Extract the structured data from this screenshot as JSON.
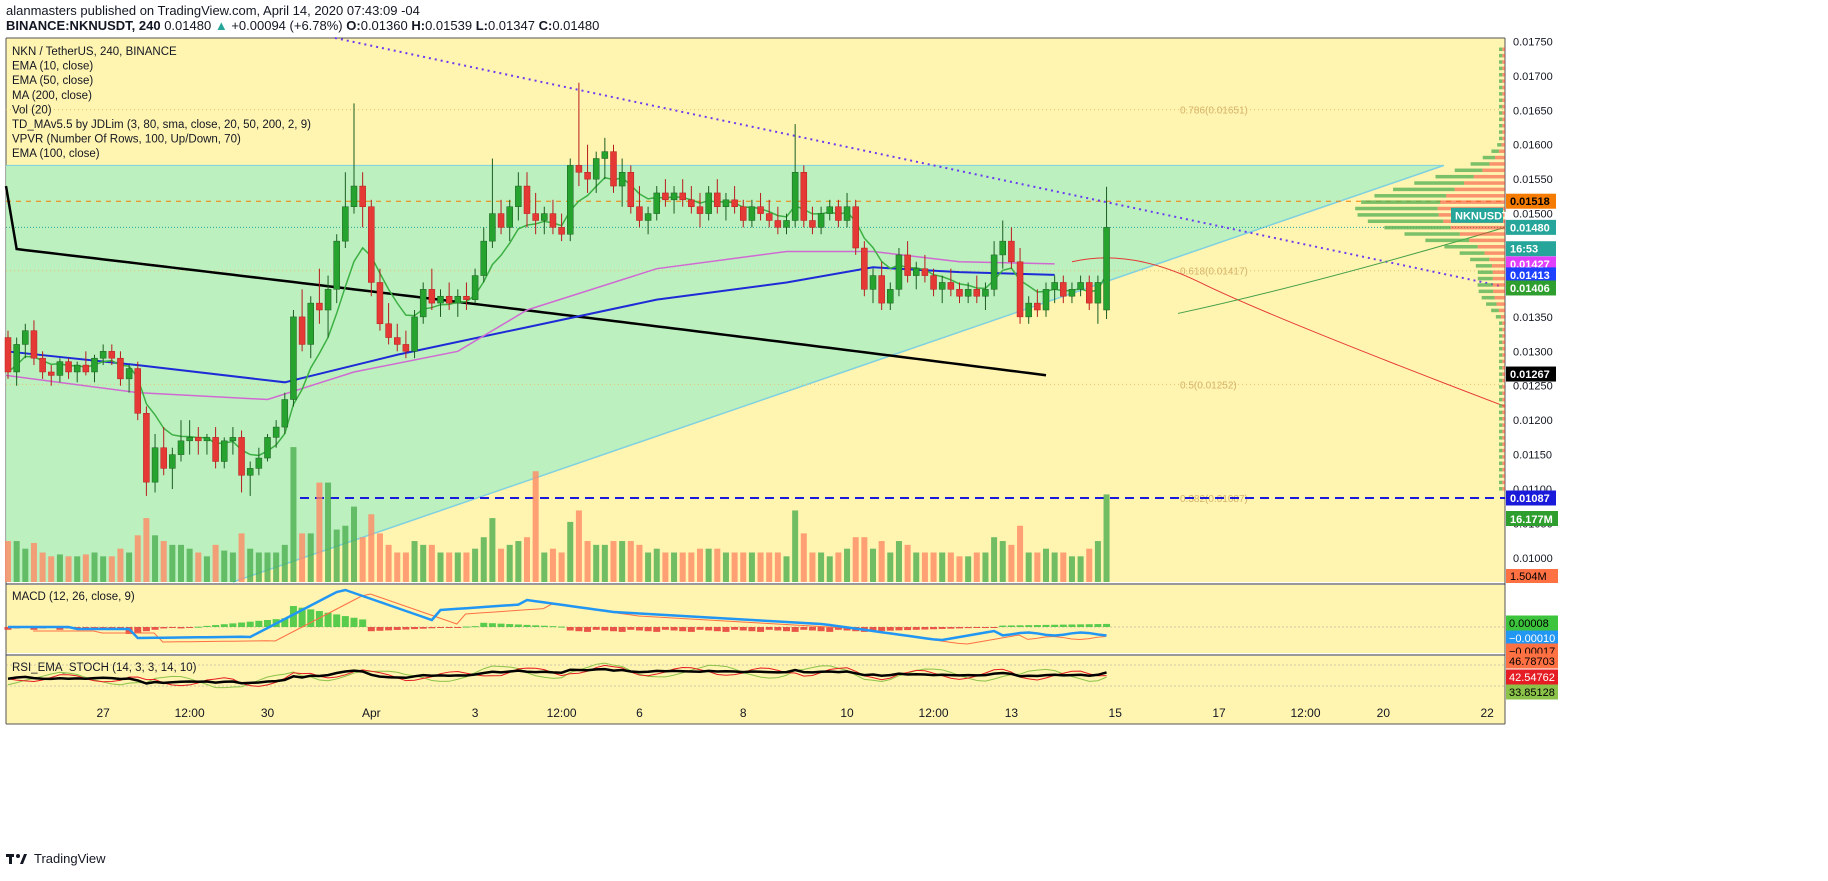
{
  "header": {
    "publisher_line": "alanmasters published on TradingView.com, April 14, 2020 07:43:09 -04",
    "symbol": "BINANCE:NKNUSDT, 240",
    "last": "0.01480",
    "change": "+0.00094 (+6.78%)",
    "o_label": "O:",
    "o": "0.01360",
    "h_label": "H:",
    "h": "0.01539",
    "l_label": "L:",
    "l": "0.01347",
    "c_label": "C:",
    "c": "0.01480"
  },
  "legend": [
    "NKN / TetherUS, 240, BINANCE",
    "EMA (10, close)",
    "EMA (50, close)",
    "MA (200, close)",
    "Vol (20)",
    "TD_MAv5.5 by JDLim (3, 80, sma, close, 20, 50, 200, 2, 9)",
    "VPVR (Number Of Rows, 100, Up/Down, 70)",
    "EMA (100, close)"
  ],
  "fib_labels": [
    "0.786(0.01651)",
    "0.618(0.01417)",
    "0.5(0.01252)",
    "0.382(0.01087)"
  ],
  "price_labels": [
    {
      "text": "0.01518",
      "price": 0.01518,
      "bg": "#f57c00",
      "fg": "#000"
    },
    {
      "text": "0.01480",
      "price": 0.0148,
      "bg": "#26a69a",
      "fg": "#fff"
    },
    {
      "text": "NKNUSDT",
      "price": 0.014975,
      "bg": "#26a69a",
      "fg": "#fff"
    },
    {
      "text": "16:53",
      "price": 0.01449,
      "bg": "#26a69a",
      "fg": "#fff"
    },
    {
      "text": "0.01427",
      "price": 0.01427,
      "bg": "#e040fb",
      "fg": "#fff"
    },
    {
      "text": "0.01413",
      "price": 0.01411,
      "bg": "#1e40ff",
      "fg": "#fff"
    },
    {
      "text": "0.01406",
      "price": 0.01392,
      "bg": "#2e9e2e",
      "fg": "#fff"
    },
    {
      "text": "0.01267",
      "price": 0.01267,
      "bg": "#000",
      "fg": "#fff"
    },
    {
      "text": "0.01087",
      "price": 0.01087,
      "bg": "#1a1adb",
      "fg": "#fff"
    }
  ],
  "volume_labels": [
    {
      "text": "16.177M",
      "bg": "#2e9e2e"
    },
    {
      "text": "1.504M",
      "bg": "#ff7043"
    }
  ],
  "macd": {
    "title": "MACD (12, 26, close, 9)",
    "labels": [
      {
        "text": "0.00008",
        "bg": "#3cc43c",
        "fg": "#000"
      },
      {
        "text": "−0.00010",
        "bg": "#2196f3",
        "fg": "#fff"
      },
      {
        "text": "−0.00017",
        "bg": "#ff7043",
        "fg": "#000"
      }
    ]
  },
  "rsi": {
    "title": "RSI_EMA_STOCH (14, 3, 3, 14, 10)",
    "labels": [
      {
        "text": "46.78703",
        "bg": "#ff7043",
        "fg": "#000"
      },
      {
        "text": "42.54762",
        "bg": "#e51c23",
        "fg": "#fff"
      },
      {
        "text": "33.85128",
        "bg": "#8bc34a",
        "fg": "#000"
      }
    ]
  },
  "footer": {
    "brand": "TradingView"
  },
  "chart_data": {
    "type": "candlestick",
    "title": "NKN / TetherUS, 240, BINANCE",
    "interval": "240",
    "y_axis_ticks": [
      "0.01750",
      "0.01700",
      "0.01650",
      "0.01600",
      "0.01550",
      "0.01500",
      "0.01450",
      "0.01400",
      "0.01350",
      "0.01300",
      "0.01250",
      "0.01200",
      "0.01150",
      "0.01100",
      "0.01050",
      "0.01000"
    ],
    "ylim": [
      0.00965,
      0.01755
    ],
    "x_ticks": [
      {
        "label": "27",
        "bar": 11
      },
      {
        "label": "12:00",
        "bar": 21
      },
      {
        "label": "30",
        "bar": 30
      },
      {
        "label": "Apr",
        "bar": 42
      },
      {
        "label": "3",
        "bar": 54
      },
      {
        "label": "12:00",
        "bar": 64
      },
      {
        "label": "6",
        "bar": 73
      },
      {
        "label": "8",
        "bar": 85
      },
      {
        "label": "10",
        "bar": 97
      },
      {
        "label": "12:00",
        "bar": 107
      },
      {
        "label": "13",
        "bar": 116
      },
      {
        "label": "15",
        "bar": 128
      },
      {
        "label": "17",
        "bar": 140
      },
      {
        "label": "12:00",
        "bar": 150
      },
      {
        "label": "20",
        "bar": 159
      },
      {
        "label": "22",
        "bar": 171
      }
    ],
    "ohlc": [
      [
        0.0132,
        0.0133,
        0.0126,
        0.0127
      ],
      [
        0.0127,
        0.0132,
        0.0125,
        0.0131
      ],
      [
        0.0131,
        0.0134,
        0.0129,
        0.0133
      ],
      [
        0.0133,
        0.01345,
        0.0128,
        0.0129
      ],
      [
        0.0129,
        0.013,
        0.0126,
        0.0127
      ],
      [
        0.0127,
        0.0128,
        0.0125,
        0.01265
      ],
      [
        0.01265,
        0.0129,
        0.01255,
        0.01285
      ],
      [
        0.01285,
        0.0129,
        0.0126,
        0.0127
      ],
      [
        0.0127,
        0.01285,
        0.01255,
        0.0128
      ],
      [
        0.0128,
        0.013,
        0.01265,
        0.0127
      ],
      [
        0.0127,
        0.01295,
        0.01255,
        0.0129
      ],
      [
        0.0129,
        0.0131,
        0.0128,
        0.013
      ],
      [
        0.013,
        0.0131,
        0.0128,
        0.0129
      ],
      [
        0.0129,
        0.013,
        0.0125,
        0.0126
      ],
      [
        0.0126,
        0.0128,
        0.0124,
        0.01275
      ],
      [
        0.01275,
        0.01285,
        0.012,
        0.0121
      ],
      [
        0.0121,
        0.0122,
        0.0109,
        0.0111
      ],
      [
        0.0111,
        0.0118,
        0.01095,
        0.0116
      ],
      [
        0.0116,
        0.0119,
        0.0112,
        0.0113
      ],
      [
        0.0113,
        0.0116,
        0.011,
        0.0115
      ],
      [
        0.0115,
        0.012,
        0.0114,
        0.0117
      ],
      [
        0.0117,
        0.012,
        0.0115,
        0.01175
      ],
      [
        0.01175,
        0.0119,
        0.0115,
        0.0117
      ],
      [
        0.0117,
        0.0118,
        0.0115,
        0.01175
      ],
      [
        0.01175,
        0.0119,
        0.0113,
        0.0114
      ],
      [
        0.0114,
        0.01175,
        0.0113,
        0.0117
      ],
      [
        0.0117,
        0.0119,
        0.0115,
        0.01175
      ],
      [
        0.01175,
        0.01185,
        0.01095,
        0.0112
      ],
      [
        0.0112,
        0.0114,
        0.0109,
        0.0113
      ],
      [
        0.0113,
        0.0116,
        0.0112,
        0.01145
      ],
      [
        0.01145,
        0.0118,
        0.0114,
        0.01175
      ],
      [
        0.01175,
        0.012,
        0.0116,
        0.0119
      ],
      [
        0.0119,
        0.0124,
        0.0118,
        0.0123
      ],
      [
        0.0123,
        0.0136,
        0.0122,
        0.0135
      ],
      [
        0.0135,
        0.0139,
        0.013,
        0.0131
      ],
      [
        0.0131,
        0.0138,
        0.0129,
        0.0137
      ],
      [
        0.0137,
        0.0142,
        0.0134,
        0.0136
      ],
      [
        0.0136,
        0.0141,
        0.0132,
        0.0139
      ],
      [
        0.0139,
        0.0147,
        0.0137,
        0.0146
      ],
      [
        0.0146,
        0.0156,
        0.0145,
        0.0151
      ],
      [
        0.0151,
        0.0166,
        0.015,
        0.0154
      ],
      [
        0.0154,
        0.0156,
        0.0148,
        0.0151
      ],
      [
        0.0151,
        0.0152,
        0.0138,
        0.014
      ],
      [
        0.014,
        0.0142,
        0.0133,
        0.0134
      ],
      [
        0.0134,
        0.0137,
        0.0131,
        0.0132
      ],
      [
        0.0132,
        0.0134,
        0.013,
        0.0131
      ],
      [
        0.0131,
        0.0133,
        0.0129,
        0.013
      ],
      [
        0.013,
        0.0136,
        0.0129,
        0.0135
      ],
      [
        0.0135,
        0.014,
        0.0134,
        0.0139
      ],
      [
        0.0139,
        0.0142,
        0.0136,
        0.0137
      ],
      [
        0.0137,
        0.0139,
        0.0135,
        0.0138
      ],
      [
        0.0138,
        0.014,
        0.0136,
        0.0137
      ],
      [
        0.0137,
        0.0139,
        0.0135,
        0.0138
      ],
      [
        0.0138,
        0.014,
        0.0136,
        0.01375
      ],
      [
        0.01375,
        0.0142,
        0.0137,
        0.0141
      ],
      [
        0.0141,
        0.0148,
        0.014,
        0.0146
      ],
      [
        0.0146,
        0.0158,
        0.0145,
        0.015
      ],
      [
        0.015,
        0.0152,
        0.0147,
        0.0148
      ],
      [
        0.0148,
        0.0152,
        0.0146,
        0.0151
      ],
      [
        0.0151,
        0.0156,
        0.0149,
        0.0154
      ],
      [
        0.0154,
        0.0156,
        0.0148,
        0.015
      ],
      [
        0.015,
        0.0153,
        0.0147,
        0.0149
      ],
      [
        0.0149,
        0.0151,
        0.0147,
        0.015
      ],
      [
        0.015,
        0.0152,
        0.0147,
        0.0148
      ],
      [
        0.0148,
        0.015,
        0.0146,
        0.0147
      ],
      [
        0.0147,
        0.0158,
        0.0146,
        0.0157
      ],
      [
        0.0157,
        0.0169,
        0.0154,
        0.0156
      ],
      [
        0.0156,
        0.016,
        0.0153,
        0.0155
      ],
      [
        0.0155,
        0.0159,
        0.0153,
        0.0158
      ],
      [
        0.0158,
        0.0161,
        0.0155,
        0.0159
      ],
      [
        0.0159,
        0.016,
        0.0153,
        0.0154
      ],
      [
        0.0154,
        0.0158,
        0.0151,
        0.0156
      ],
      [
        0.0156,
        0.0157,
        0.015,
        0.0151
      ],
      [
        0.0151,
        0.0154,
        0.0148,
        0.0149
      ],
      [
        0.0149,
        0.0151,
        0.0147,
        0.015
      ],
      [
        0.015,
        0.0154,
        0.0149,
        0.0153
      ],
      [
        0.0153,
        0.0155,
        0.0151,
        0.0152
      ],
      [
        0.0152,
        0.0154,
        0.015,
        0.0153
      ],
      [
        0.0153,
        0.0155,
        0.0151,
        0.0152
      ],
      [
        0.0152,
        0.0154,
        0.015,
        0.0151
      ],
      [
        0.0151,
        0.0153,
        0.0148,
        0.015
      ],
      [
        0.015,
        0.0154,
        0.0149,
        0.0153
      ],
      [
        0.0153,
        0.0155,
        0.015,
        0.0151
      ],
      [
        0.0151,
        0.0153,
        0.0149,
        0.0152
      ],
      [
        0.0152,
        0.0154,
        0.015,
        0.0151
      ],
      [
        0.0151,
        0.0152,
        0.0148,
        0.0149
      ],
      [
        0.0149,
        0.0152,
        0.0148,
        0.0151
      ],
      [
        0.0151,
        0.0153,
        0.0149,
        0.015
      ],
      [
        0.015,
        0.0152,
        0.0148,
        0.0149
      ],
      [
        0.0149,
        0.0151,
        0.0147,
        0.0148
      ],
      [
        0.0148,
        0.015,
        0.0147,
        0.0149
      ],
      [
        0.0149,
        0.0163,
        0.0148,
        0.0156
      ],
      [
        0.0156,
        0.0157,
        0.0148,
        0.0149
      ],
      [
        0.0149,
        0.0151,
        0.0147,
        0.0148
      ],
      [
        0.0148,
        0.0151,
        0.0147,
        0.015
      ],
      [
        0.015,
        0.0152,
        0.0149,
        0.0151
      ],
      [
        0.0151,
        0.0152,
        0.0148,
        0.0149
      ],
      [
        0.0149,
        0.0153,
        0.0148,
        0.0151
      ],
      [
        0.0151,
        0.0152,
        0.0144,
        0.0145
      ],
      [
        0.0145,
        0.0146,
        0.0138,
        0.0139
      ],
      [
        0.0139,
        0.0142,
        0.0137,
        0.0141
      ],
      [
        0.0141,
        0.0143,
        0.0136,
        0.0137
      ],
      [
        0.0137,
        0.014,
        0.0136,
        0.0139
      ],
      [
        0.0139,
        0.0145,
        0.0138,
        0.0144
      ],
      [
        0.0144,
        0.0146,
        0.014,
        0.0141
      ],
      [
        0.0141,
        0.0143,
        0.0139,
        0.0142
      ],
      [
        0.0142,
        0.0144,
        0.014,
        0.0141
      ],
      [
        0.0141,
        0.0142,
        0.0138,
        0.0139
      ],
      [
        0.0139,
        0.0141,
        0.0137,
        0.014
      ],
      [
        0.014,
        0.0142,
        0.0138,
        0.0139
      ],
      [
        0.0139,
        0.014,
        0.0137,
        0.0138
      ],
      [
        0.0138,
        0.014,
        0.0137,
        0.0139
      ],
      [
        0.0139,
        0.0141,
        0.0137,
        0.0138
      ],
      [
        0.0138,
        0.014,
        0.0136,
        0.0139
      ],
      [
        0.0139,
        0.0146,
        0.0138,
        0.0144
      ],
      [
        0.0144,
        0.0149,
        0.0142,
        0.0146
      ],
      [
        0.0146,
        0.0148,
        0.0142,
        0.0143
      ],
      [
        0.0143,
        0.0145,
        0.0134,
        0.0135
      ],
      [
        0.0135,
        0.0138,
        0.0134,
        0.0137
      ],
      [
        0.0137,
        0.0139,
        0.0135,
        0.0136
      ],
      [
        0.0136,
        0.014,
        0.0135,
        0.0139
      ],
      [
        0.0139,
        0.0141,
        0.0137,
        0.014
      ],
      [
        0.014,
        0.0141,
        0.0137,
        0.0138
      ],
      [
        0.0138,
        0.014,
        0.0137,
        0.0139
      ],
      [
        0.0139,
        0.0141,
        0.0138,
        0.014
      ],
      [
        0.014,
        0.0141,
        0.0136,
        0.0137
      ],
      [
        0.0137,
        0.0141,
        0.0134,
        0.014
      ],
      [
        0.0136,
        0.01539,
        0.01347,
        0.0148
      ]
    ],
    "volume_peak_label": "16.177M",
    "volume_base_label": "1.504M"
  }
}
